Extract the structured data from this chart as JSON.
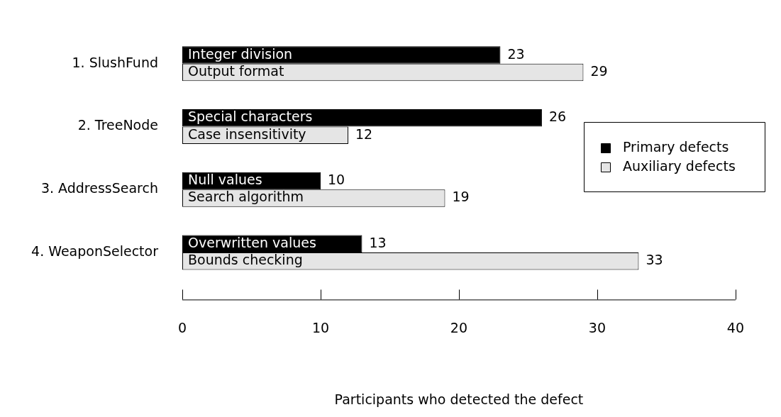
{
  "chart_data": {
    "type": "bar",
    "orientation": "horizontal",
    "xlabel": "Participants who detected the defect",
    "categories": [
      "1. SlushFund",
      "2. TreeNode",
      "3. AddressSearch",
      "4. WeaponSelector"
    ],
    "series": [
      {
        "name": "Primary defects",
        "color": "#000000",
        "values": [
          23,
          26,
          10,
          13
        ]
      },
      {
        "name": "Auxiliary defects",
        "color": "#e5e5e5",
        "values": [
          29,
          12,
          19,
          33
        ]
      }
    ],
    "xlim": [
      0,
      40
    ],
    "xticks": [
      0,
      10,
      20,
      30,
      40
    ],
    "grid": false,
    "legend": "right",
    "data_labels": true,
    "annotations": [
      {
        "text": "Integer division",
        "y": "1. SlushFund"
      },
      {
        "text": "Output format",
        "y": "1. SlushFund"
      },
      {
        "text": "Special characters",
        "y": "2. TreeNode"
      },
      {
        "text": "Case insensitivity",
        "y": "2. TreeNode"
      },
      {
        "text": "Null values",
        "y": "3. AddressSearch"
      },
      {
        "text": "Search algorithm",
        "y": "3. AddressSearch"
      },
      {
        "text": "Overwritten values",
        "y": "4. WeaponSelector"
      },
      {
        "text": "Bounds checking",
        "y": "4. WeaponSelector"
      }
    ]
  }
}
